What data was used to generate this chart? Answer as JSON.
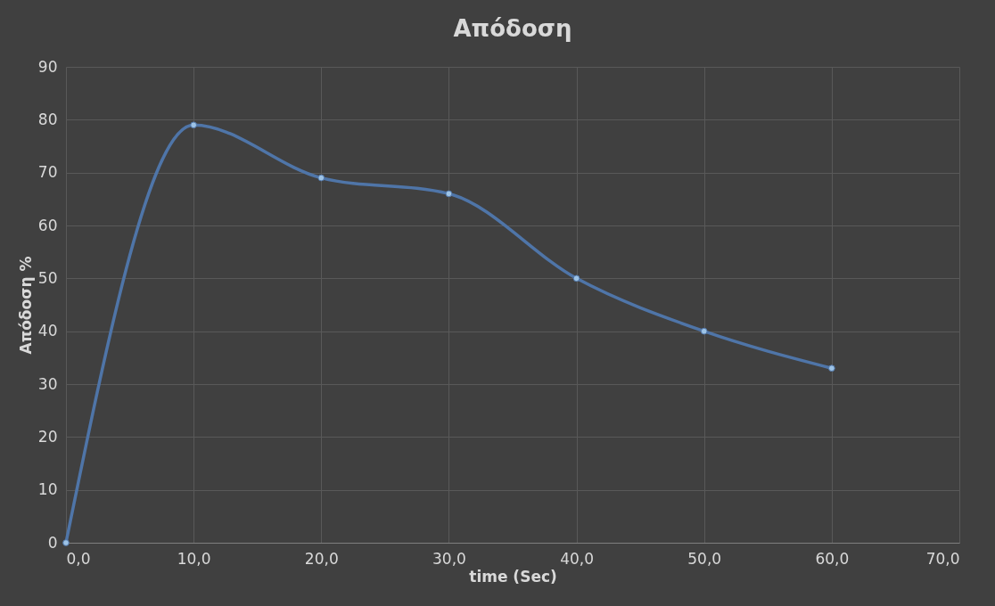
{
  "chart_data": {
    "type": "line",
    "title": "Απόδοση",
    "xlabel": "time (Sec)",
    "ylabel": "Απόδοση %",
    "x": [
      0,
      10,
      20,
      30,
      40,
      50,
      60
    ],
    "series": [
      {
        "color": "#4f75a8",
        "values": [
          0,
          79,
          69,
          66,
          50,
          40,
          33
        ]
      }
    ],
    "xlim": [
      0,
      70
    ],
    "xticks": [
      {
        "value": 0,
        "label": "0,0"
      },
      {
        "value": 10,
        "label": "10,0"
      },
      {
        "value": 20,
        "label": "20,0"
      },
      {
        "value": 30,
        "label": "30,0"
      },
      {
        "value": 40,
        "label": "40,0"
      },
      {
        "value": 50,
        "label": "50,0"
      },
      {
        "value": 60,
        "label": "60,0"
      },
      {
        "value": 70,
        "label": "70,0"
      }
    ],
    "ylim": [
      0,
      90
    ],
    "yticks": [
      0,
      10,
      20,
      30,
      40,
      50,
      60,
      70,
      80,
      90
    ],
    "grid": true,
    "marker": "circle",
    "line_style": "solid"
  }
}
